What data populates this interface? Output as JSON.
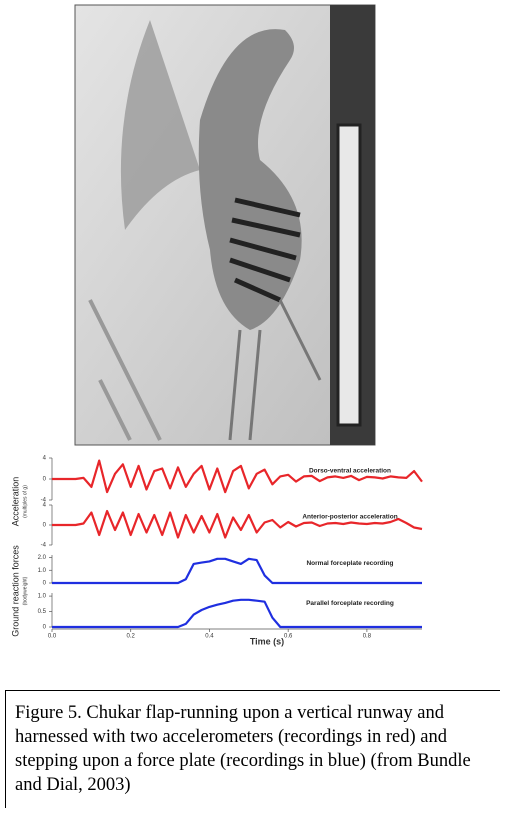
{
  "chart_data": [
    {
      "type": "line",
      "y_label": "Acceleration",
      "y_unit": "(multiples of g)",
      "x": [
        0,
        0.02,
        0.04,
        0.06,
        0.08,
        0.1,
        0.12,
        0.14,
        0.16,
        0.18,
        0.2,
        0.22,
        0.24,
        0.26,
        0.28,
        0.3,
        0.32,
        0.34,
        0.36,
        0.38,
        0.4,
        0.42,
        0.44,
        0.46,
        0.48,
        0.5,
        0.52,
        0.54,
        0.56,
        0.58,
        0.6,
        0.62,
        0.64,
        0.66,
        0.68,
        0.7,
        0.72,
        0.74,
        0.76,
        0.78,
        0.8,
        0.82,
        0.84,
        0.86,
        0.88,
        0.9,
        0.92,
        0.94
      ],
      "xlim": [
        0,
        0.94
      ],
      "ylim": [
        -4,
        4
      ],
      "yticks": [
        4,
        0,
        -4
      ],
      "series": [
        {
          "name": "Dorso-ventral acceleration",
          "color": "#e8262a",
          "values": [
            0,
            0,
            0,
            0,
            0.2,
            -1.5,
            3.5,
            -2.5,
            1,
            2.8,
            -1.5,
            2.5,
            -2,
            1.5,
            2,
            -1.8,
            2.2,
            -1.5,
            1,
            2.5,
            -2,
            2,
            -2.5,
            1.5,
            2.5,
            -1.8,
            1,
            1.8,
            -1,
            0.5,
            0.8,
            -0.5,
            0.5,
            0.6,
            -0.4,
            0.3,
            0.5,
            0.2,
            0.6,
            -0.2,
            0.4,
            0.3,
            0.1,
            0.5,
            0.3,
            0.2,
            1.5,
            -0.5
          ]
        }
      ]
    },
    {
      "type": "line",
      "x": [
        0,
        0.02,
        0.04,
        0.06,
        0.08,
        0.1,
        0.12,
        0.14,
        0.16,
        0.18,
        0.2,
        0.22,
        0.24,
        0.26,
        0.28,
        0.3,
        0.32,
        0.34,
        0.36,
        0.38,
        0.4,
        0.42,
        0.44,
        0.46,
        0.48,
        0.5,
        0.52,
        0.54,
        0.56,
        0.58,
        0.6,
        0.62,
        0.64,
        0.66,
        0.68,
        0.7,
        0.72,
        0.74,
        0.76,
        0.78,
        0.8,
        0.82,
        0.84,
        0.86,
        0.88,
        0.9,
        0.92,
        0.94
      ],
      "xlim": [
        0,
        0.94
      ],
      "ylim": [
        -4,
        4
      ],
      "yticks": [
        4,
        0,
        -4
      ],
      "series": [
        {
          "name": "Anterior-posterior acceleration",
          "color": "#e8262a",
          "values": [
            0,
            0,
            0,
            0,
            0.3,
            2.5,
            -2,
            2.8,
            -1,
            2.5,
            -2,
            2.2,
            -1.5,
            2,
            -2,
            2.5,
            -2.5,
            2,
            -1.5,
            1.8,
            -1.5,
            2.2,
            -2.5,
            1.5,
            -1,
            2,
            -1.5,
            0.5,
            1,
            -0.5,
            0.6,
            -0.3,
            0.4,
            0.5,
            -0.2,
            0.3,
            0.4,
            0.2,
            0.5,
            0.3,
            0.2,
            0.4,
            0.3,
            0.6,
            1.2,
            0.4,
            -0.5,
            -0.8
          ]
        }
      ]
    },
    {
      "type": "line",
      "y_label": "Ground reaction forces",
      "y_unit": "(bodyweight)",
      "x": [
        0,
        0.02,
        0.04,
        0.06,
        0.08,
        0.1,
        0.12,
        0.14,
        0.16,
        0.18,
        0.2,
        0.22,
        0.24,
        0.26,
        0.28,
        0.3,
        0.32,
        0.34,
        0.36,
        0.38,
        0.4,
        0.42,
        0.44,
        0.46,
        0.48,
        0.5,
        0.52,
        0.54,
        0.56,
        0.58,
        0.6,
        0.62,
        0.64,
        0.66,
        0.68,
        0.7,
        0.72,
        0.74,
        0.76,
        0.78,
        0.8,
        0.82,
        0.84,
        0.86,
        0.88,
        0.9,
        0.92,
        0.94
      ],
      "xlim": [
        0,
        0.94
      ],
      "ylim": [
        0,
        2.2
      ],
      "yticks": [
        {
          "value": 2,
          "label": "2.0"
        },
        {
          "value": 1,
          "label": "1.0"
        },
        0
      ],
      "series": [
        {
          "name": "Normal forceplate recording",
          "color": "#1f2fe0",
          "values": [
            0,
            0,
            0,
            0,
            0,
            0,
            0,
            0,
            0,
            0,
            0,
            0,
            0,
            0,
            0,
            0,
            0,
            0.3,
            1.5,
            1.6,
            1.7,
            1.9,
            1.9,
            1.7,
            1.5,
            1.9,
            1.8,
            0.6,
            0,
            0,
            0,
            0,
            0,
            0,
            0,
            0,
            0,
            0,
            0,
            0,
            0,
            0,
            0,
            0,
            0,
            0,
            0,
            0
          ]
        }
      ]
    },
    {
      "type": "line",
      "x_label": "Time (s)",
      "x": [
        0,
        0.02,
        0.04,
        0.06,
        0.08,
        0.1,
        0.12,
        0.14,
        0.16,
        0.18,
        0.2,
        0.22,
        0.24,
        0.26,
        0.28,
        0.3,
        0.32,
        0.34,
        0.36,
        0.38,
        0.4,
        0.42,
        0.44,
        0.46,
        0.48,
        0.5,
        0.52,
        0.54,
        0.56,
        0.58,
        0.6,
        0.62,
        0.64,
        0.66,
        0.68,
        0.7,
        0.72,
        0.74,
        0.76,
        0.78,
        0.8,
        0.82,
        0.84,
        0.86,
        0.88,
        0.9,
        0.92,
        0.94
      ],
      "xlim": [
        0,
        0.94
      ],
      "ylim": [
        0,
        1.1
      ],
      "yticks": [
        {
          "value": 1,
          "label": "1.0"
        },
        0.5,
        0
      ],
      "xticks": [
        {
          "value": 0,
          "label": "0.0"
        },
        0.2,
        0.4,
        0.6,
        0.8
      ],
      "series": [
        {
          "name": "Parallel forceplate recording",
          "color": "#1f2fe0",
          "values": [
            0,
            0,
            0,
            0,
            0,
            0,
            0,
            0,
            0,
            0,
            0,
            0,
            0,
            0,
            0,
            0,
            0,
            0.1,
            0.4,
            0.55,
            0.65,
            0.72,
            0.78,
            0.85,
            0.88,
            0.88,
            0.85,
            0.82,
            0.3,
            0,
            0,
            0,
            0,
            0,
            0,
            0,
            0,
            0,
            0,
            0,
            0,
            0,
            0,
            0,
            0,
            0,
            0,
            0
          ]
        }
      ]
    }
  ],
  "caption": "Figure 5.  Chukar flap-running upon a vertical runway and harnessed with two accelerometers (recordings in red) and stepping upon a force plate (recordings in blue) (from Bundle and Dial, 2003)"
}
